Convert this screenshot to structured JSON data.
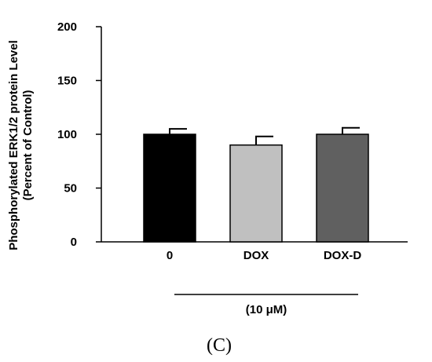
{
  "chart_data": {
    "type": "bar",
    "categories": [
      "0",
      "DOX",
      "DOX-D"
    ],
    "values": [
      100,
      90,
      100
    ],
    "errors": [
      5,
      8,
      6
    ],
    "bar_colors": [
      "#000000",
      "#c0c0c0",
      "#606060"
    ],
    "ylabel_line1": "Phosphorylated ERK1/2 protein Level",
    "ylabel_line2": "(Percent of Control)",
    "ylim": [
      0,
      200
    ],
    "yticks": [
      "0",
      "50",
      "100",
      "150",
      "200"
    ],
    "group_label": "(10 μM)",
    "panel_label": "(C)",
    "grid": false
  }
}
